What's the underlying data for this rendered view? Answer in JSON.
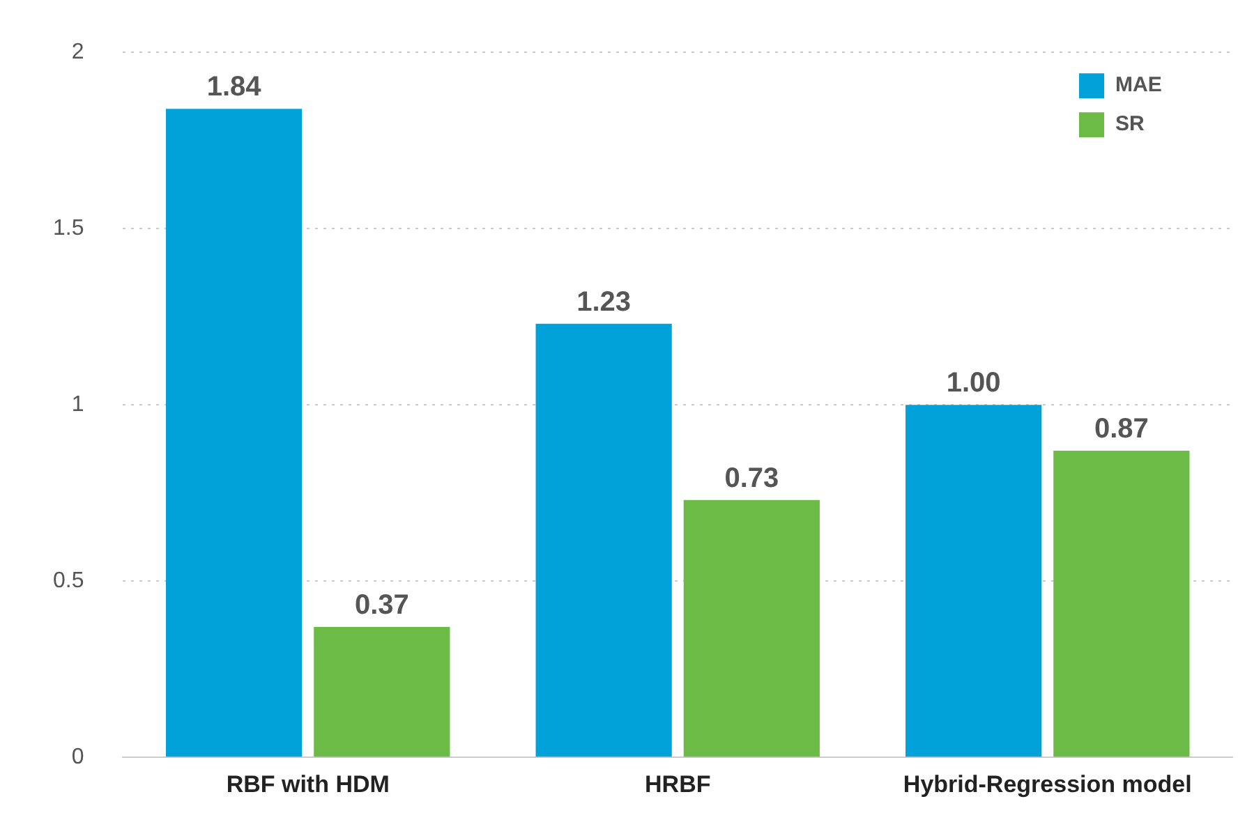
{
  "chart_data": {
    "type": "bar",
    "categories": [
      "RBF with HDM",
      "HRBF",
      "Hybrid-Regression model"
    ],
    "series": [
      {
        "name": "MAE",
        "color": "#00a2d9",
        "values": [
          1.84,
          1.23,
          1.0
        ],
        "value_labels": [
          "1.84",
          "1.23",
          "1.00"
        ]
      },
      {
        "name": "SR",
        "color": "#6cbb46",
        "values": [
          0.37,
          0.73,
          0.87
        ],
        "value_labels": [
          "0.37",
          "0.73",
          "0.87"
        ]
      }
    ],
    "ylim": [
      0,
      2
    ],
    "yticks": [
      0,
      0.5,
      1,
      1.5,
      2
    ],
    "grid": "y",
    "line_style": "dotted",
    "legend": "top right"
  }
}
